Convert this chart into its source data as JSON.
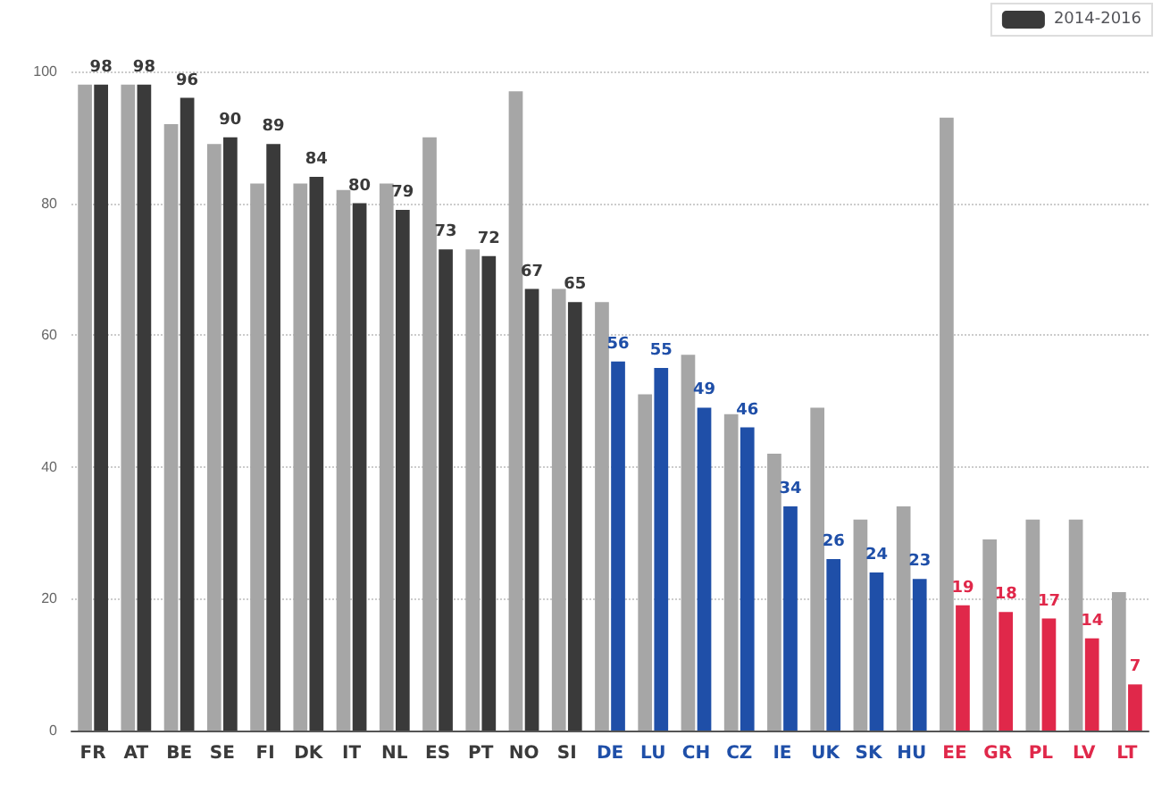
{
  "chart_data": {
    "type": "bar",
    "categories": [
      "FR",
      "AT",
      "BE",
      "SE",
      "FI",
      "DK",
      "IT",
      "NL",
      "ES",
      "PT",
      "NO",
      "SI",
      "DE",
      "LU",
      "CH",
      "CZ",
      "IE",
      "UK",
      "SK",
      "HU",
      "EE",
      "GR",
      "PL",
      "LV",
      "LT"
    ],
    "series": [
      {
        "color": "#a6a6a6",
        "values": [
          98,
          98,
          92,
          89,
          83,
          83,
          82,
          83,
          90,
          73,
          97,
          67,
          65,
          51,
          57,
          48,
          42,
          49,
          32,
          34,
          93,
          29,
          32,
          32,
          21
        ]
      },
      {
        "name": "2014-2016",
        "color": "#3a3a3a",
        "colors": [
          "#3a3a3a",
          "#3a3a3a",
          "#3a3a3a",
          "#3a3a3a",
          "#3a3a3a",
          "#3a3a3a",
          "#3a3a3a",
          "#3a3a3a",
          "#3a3a3a",
          "#3a3a3a",
          "#3a3a3a",
          "#3a3a3a",
          "#1f4fa8",
          "#1f4fa8",
          "#1f4fa8",
          "#1f4fa8",
          "#1f4fa8",
          "#1f4fa8",
          "#1f4fa8",
          "#1f4fa8",
          "#e0284a",
          "#e0284a",
          "#e0284a",
          "#e0284a",
          "#e0284a"
        ],
        "values": [
          98,
          98,
          96,
          90,
          89,
          84,
          80,
          79,
          73,
          72,
          67,
          65,
          56,
          55,
          49,
          46,
          34,
          26,
          24,
          23,
          19,
          18,
          17,
          14,
          7
        ],
        "value_labels": [
          "98",
          "98",
          "96",
          "90",
          "89",
          "84",
          "80",
          "79",
          "73",
          "72",
          "67",
          "65",
          "56",
          "55",
          "49",
          "46",
          "34",
          "26",
          "24",
          "23",
          "19",
          "18",
          "17",
          "14",
          "7"
        ]
      }
    ],
    "ylim": [
      0,
      100
    ],
    "yticks": [
      0,
      20,
      40,
      60,
      80,
      100
    ],
    "grid": "y",
    "legend": "top right"
  }
}
